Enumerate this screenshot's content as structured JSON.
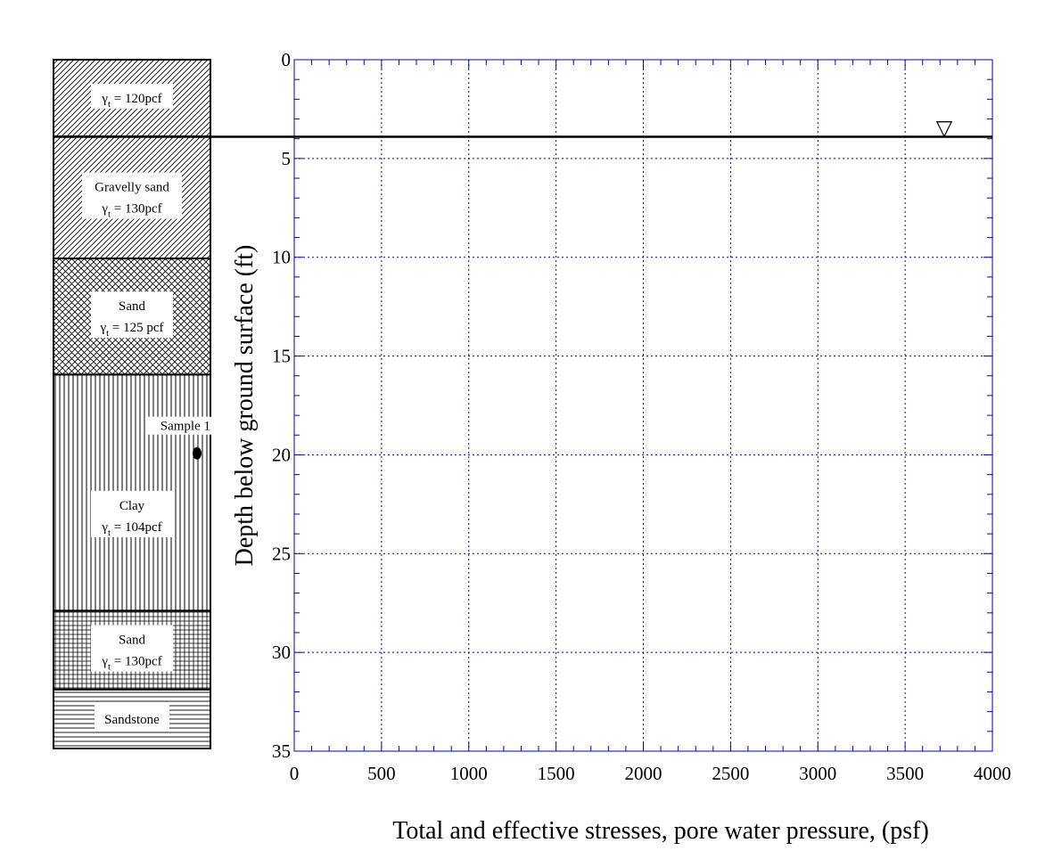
{
  "chart_data": {
    "type": "line",
    "title": "",
    "xlabel": "Total and effective stresses, pore water pressure, (psf)",
    "ylabel": "Depth below ground surface (ft)",
    "xlim": [
      0,
      4000
    ],
    "ylim": [
      0,
      35
    ],
    "y_inverted": true,
    "x_ticks": [
      0,
      500,
      1000,
      1500,
      2000,
      2500,
      3000,
      3500,
      4000
    ],
    "y_ticks": [
      0,
      5,
      10,
      15,
      20,
      25,
      30,
      35
    ],
    "x_minor_step": 100,
    "y_minor_step": 1,
    "grid": true,
    "grid_style": "dotted",
    "grid_color": "#0000cc",
    "axis_color": "#0000cc",
    "water_table": {
      "depth": 3.9,
      "symbol": "▽"
    },
    "series": []
  },
  "soil_profile": {
    "depth_max": 35,
    "layers": [
      {
        "top": 0,
        "bottom": 3.9,
        "pattern": "diagonal",
        "name": "",
        "gamma_prefix": "γ",
        "gamma_sub": "t",
        "gamma_value": " = 120pcf"
      },
      {
        "top": 3.9,
        "bottom": 10.1,
        "pattern": "diagonal",
        "name": "Gravelly sand",
        "gamma_prefix": "γ",
        "gamma_sub": "t",
        "gamma_value": " = 130pcf"
      },
      {
        "top": 10.1,
        "bottom": 16,
        "pattern": "crosshatch",
        "name": "Sand",
        "gamma_prefix": "γ",
        "gamma_sub": "t",
        "gamma_value": " = 125 pcf"
      },
      {
        "top": 16,
        "bottom": 28,
        "pattern": "vertical",
        "name": "Clay",
        "gamma_prefix": "γ",
        "gamma_sub": "t",
        "gamma_value": " = 104pcf"
      },
      {
        "top": 28,
        "bottom": 32,
        "pattern": "grid",
        "name": "Sand",
        "gamma_prefix": "γ",
        "gamma_sub": "t",
        "gamma_value": " = 130pcf"
      },
      {
        "top": 32,
        "bottom": 35,
        "pattern": "horizontal",
        "name": "Sandstone",
        "gamma_prefix": "",
        "gamma_sub": "",
        "gamma_value": ""
      }
    ],
    "sample": {
      "label": "Sample 1",
      "depth": 20
    }
  }
}
